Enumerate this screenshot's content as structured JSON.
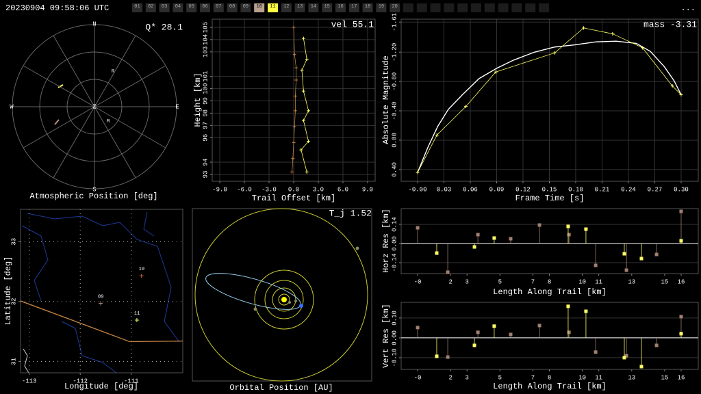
{
  "header": {
    "timestamp": "20230904 09:58:06 UTC",
    "frames": [
      "01",
      "02",
      "03",
      "04",
      "05",
      "06",
      "07",
      "08",
      "09",
      "10",
      "11",
      "12",
      "13",
      "14",
      "15",
      "16",
      "17",
      "18",
      "19",
      "20"
    ],
    "highlighted": {
      "10": "#b8a090",
      "11": "#ffff44"
    },
    "menu": "..."
  },
  "chart_data": [
    {
      "type": "polar",
      "title": "Atmospheric Position [deg]",
      "annotation": "Q* 28.1",
      "compass": [
        "N",
        "E",
        "S",
        "W"
      ],
      "center": "Z",
      "markers": [
        "R",
        "M"
      ],
      "rings": 3,
      "spokes": 12
    },
    {
      "type": "line",
      "xlabel": "Trail Offset [km]",
      "ylabel": "Height [km]",
      "annotation": "vel 55.1",
      "xlim": [
        -9.92,
        9.92
      ],
      "ylim": [
        92.44,
        105.67
      ],
      "xticks": [
        {
          "value": -9,
          "label": "-9.0"
        },
        {
          "value": -6,
          "label": "-6.0"
        },
        {
          "value": -3,
          "label": "-3.0"
        },
        {
          "value": 0,
          "label": "0.0"
        },
        {
          "value": 3,
          "label": "3.0"
        },
        {
          "value": 6,
          "label": "6.0"
        },
        {
          "value": 9,
          "label": "9.0"
        }
      ],
      "yticks": [
        93,
        94,
        96,
        97,
        98,
        99,
        100,
        101,
        103,
        104,
        105
      ],
      "grid": true,
      "series": [
        {
          "color": "#c08040",
          "markers": true,
          "x": [
            0,
            0.1,
            0.3,
            0.3,
            0.2,
            0.2,
            0.1,
            0,
            -0.1,
            -0.2
          ],
          "values": [
            105,
            102.8,
            101.7,
            100.7,
            99.4,
            98.2,
            96.9,
            95.6,
            94.3,
            93.2
          ]
        },
        {
          "color": "#ffff66",
          "markers": true,
          "x": [
            1.2,
            1.6,
            1.0,
            1.2,
            1.8,
            1.2,
            1.8,
            0.9,
            1.6
          ],
          "values": [
            104.1,
            102.4,
            101.5,
            99.8,
            98.2,
            97.4,
            95.7,
            95.0,
            93.2
          ]
        }
      ]
    },
    {
      "type": "line",
      "xlabel": "Frame Time [s]",
      "ylabel": "Absolute Magnitude",
      "annotation": "mass -3.31",
      "xlim": [
        -0.0187,
        0.3195
      ],
      "ylim": [
        0.56,
        -1.65
      ],
      "xticks": [
        {
          "value": 0,
          "label": "-0.00"
        },
        0.03,
        0.06,
        0.09,
        0.12,
        0.15,
        0.18,
        0.21,
        0.24,
        0.27,
        {
          "value": 0.3,
          "label": "0.30"
        }
      ],
      "yticks": [
        {
          "value": 0.4,
          "label": "0.40"
        },
        {
          "value": 0,
          "label": "0.00"
        },
        {
          "value": -0.4,
          "label": "-0.40"
        },
        {
          "value": -0.8,
          "label": "-0.80"
        },
        {
          "value": -1.2,
          "label": "-1.20"
        },
        -1.61
      ],
      "grid": true,
      "series": [
        {
          "color": "#ffffff",
          "markers": false,
          "x": [
            0,
            0.012,
            0.023,
            0.035,
            0.051,
            0.07,
            0.09,
            0.109,
            0.133,
            0.156,
            0.179,
            0.203,
            0.226,
            0.249,
            0.265,
            0.281,
            0.292,
            0.3
          ],
          "values": [
            0.44,
            0.09,
            -0.19,
            -0.42,
            -0.62,
            -0.84,
            -0.98,
            -1.09,
            -1.2,
            -1.27,
            -1.3,
            -1.34,
            -1.35,
            -1.32,
            -1.21,
            -1.0,
            -0.81,
            -0.62
          ]
        },
        {
          "color": "#ffff66",
          "markers": true,
          "x": [
            0,
            0.022,
            0.055,
            0.089,
            0.156,
            0.189,
            0.222,
            0.256,
            0.29,
            0.3
          ],
          "values": [
            0.44,
            -0.07,
            -0.46,
            -0.93,
            -1.19,
            -1.53,
            -1.45,
            -1.26,
            -0.74,
            -0.62
          ]
        }
      ]
    },
    {
      "type": "map",
      "xlabel": "Longitude [deg]",
      "ylabel": "Latitude [deg]",
      "xlim": [
        -113.17,
        -109.99
      ],
      "ylim": [
        30.81,
        33.54
      ],
      "xticks": [
        -113,
        -112,
        -111
      ],
      "yticks": [
        31,
        32,
        33
      ],
      "grid": "dotted",
      "series": [
        {
          "color": "#c08040",
          "markers": false,
          "x": [
            -113.17,
            -111.03,
            -109.99
          ],
          "values": [
            32.01,
            31.33,
            31.34
          ]
        }
      ],
      "stations": {
        "labels": [
          "09",
          "10",
          "11"
        ],
        "x": [
          -111.6,
          -110.8,
          -110.89
        ],
        "values": [
          31.97,
          32.43,
          31.69
        ],
        "colors": [
          "#a08070",
          "#c06040",
          "#ffff66"
        ]
      }
    },
    {
      "type": "orbit",
      "title": "Orbital Position [AU]",
      "annotation": "T_j 1.52"
    },
    {
      "type": "stem",
      "xlabel": "Length Along Trail [km]",
      "ylabel": "Horz Res [km]",
      "xlim": [
        -1,
        17.04
      ],
      "ylim": [
        -0.22,
        0.255
      ],
      "xticks": [
        {
          "value": 0,
          "label": "-0"
        },
        2,
        3,
        5,
        7,
        8,
        10,
        11,
        13,
        15,
        16
      ],
      "yticks": [
        -0.14,
        {
          "value": 0,
          "label": "0.00"
        },
        0.14
      ],
      "grid": true,
      "series": [
        {
          "color": "#a08070",
          "x": [
            0,
            1.83,
            3.66,
            5.65,
            7.4,
            9.19,
            10.81,
            12.68,
            14.51,
            16.0
          ],
          "values": [
            0.115,
            -0.21,
            0.065,
            0.035,
            0.135,
            0.065,
            -0.16,
            -0.195,
            -0.08,
            0.235
          ]
        },
        {
          "color": "#ffff66",
          "x": [
            1.16,
            3.45,
            4.65,
            9.14,
            10.22,
            12.55,
            13.59,
            16.0
          ],
          "values": [
            -0.07,
            -0.025,
            0.04,
            0.125,
            0.105,
            -0.075,
            -0.11,
            0.02
          ]
        }
      ]
    },
    {
      "type": "stem",
      "xlabel": "Length Along Trail [km]",
      "ylabel": "Vert Res [km]",
      "xlim": [
        -1,
        17.04
      ],
      "ylim": [
        -0.159,
        0.179
      ],
      "xticks": [
        {
          "value": 0,
          "label": "-0"
        },
        2,
        3,
        5,
        7,
        8,
        10,
        11,
        13,
        15,
        16
      ],
      "yticks": [
        {
          "value": -0.1,
          "label": "-0.10"
        },
        {
          "value": 0,
          "label": "0.00"
        },
        {
          "value": 0.1,
          "label": "0.10"
        }
      ],
      "grid": true,
      "series": [
        {
          "color": "#a08070",
          "x": [
            0,
            1.83,
            3.66,
            5.65,
            7.4,
            9.19,
            10.81,
            12.68,
            14.51,
            16.0
          ],
          "values": [
            0.052,
            -0.097,
            0.028,
            0.017,
            0.062,
            0.028,
            -0.072,
            -0.09,
            -0.038,
            0.107
          ]
        },
        {
          "color": "#ffff66",
          "x": [
            1.16,
            3.45,
            4.65,
            9.14,
            10.22,
            12.55,
            13.59,
            16.0
          ],
          "values": [
            -0.093,
            -0.038,
            0.059,
            0.159,
            0.134,
            -0.1,
            -0.145,
            0.021
          ]
        }
      ]
    }
  ]
}
